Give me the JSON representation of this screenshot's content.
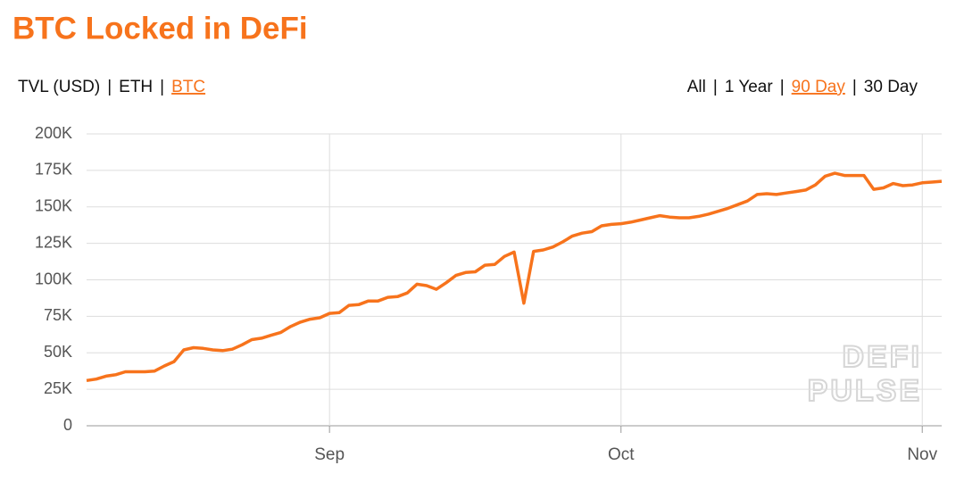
{
  "chart_data": {
    "type": "line",
    "title": "BTC Locked in DeFi",
    "metric_tabs": [
      "TVL (USD)",
      "ETH",
      "BTC"
    ],
    "active_metric": 2,
    "range_tabs": [
      "All",
      "1 Year",
      "90 Day",
      "30 Day"
    ],
    "active_range": 2,
    "separator": "|",
    "watermark": [
      "DEFI",
      "PULSE"
    ],
    "categories": [
      null,
      null,
      null,
      null,
      null,
      null,
      null,
      null,
      null,
      null,
      null,
      null,
      null,
      null,
      null,
      null,
      null,
      null,
      null,
      null,
      null,
      null,
      null,
      null,
      null,
      "Sep",
      null,
      null,
      null,
      null,
      null,
      null,
      null,
      null,
      null,
      null,
      null,
      null,
      null,
      null,
      null,
      null,
      null,
      null,
      null,
      null,
      null,
      null,
      null,
      null,
      null,
      null,
      null,
      null,
      null,
      "Oct",
      null,
      null,
      null,
      null,
      null,
      null,
      null,
      null,
      null,
      null,
      null,
      null,
      null,
      null,
      null,
      null,
      null,
      null,
      null,
      null,
      null,
      null,
      null,
      null,
      null,
      null,
      null,
      null,
      null,
      null,
      "Nov",
      null,
      null
    ],
    "series": [
      {
        "color": "#f7731c",
        "values": [
          31000,
          32000,
          34000,
          35000,
          37000,
          37000,
          37000,
          37500,
          41000,
          44000,
          52000,
          53500,
          53000,
          52000,
          51500,
          52500,
          55500,
          59000,
          60000,
          62000,
          64000,
          68000,
          71000,
          73000,
          74000,
          77000,
          77500,
          82500,
          83000,
          85500,
          85500,
          88000,
          88500,
          91000,
          97000,
          96000,
          93500,
          98000,
          103000,
          105000,
          105500,
          110000,
          110500,
          116000,
          119000,
          84000,
          119500,
          120500,
          122500,
          126000,
          130000,
          132000,
          133000,
          137000,
          138000,
          138500,
          139500,
          141000,
          142500,
          144000,
          143000,
          142500,
          142500,
          143500,
          145000,
          147000,
          149000,
          151500,
          154000,
          158500,
          159000,
          158500,
          159500,
          160500,
          161500,
          165000,
          171000,
          173000,
          171500,
          171500,
          171500,
          162000,
          163000,
          166000,
          164500,
          165000,
          166500,
          167000,
          167500
        ]
      }
    ],
    "ylim": [
      0,
      200000
    ],
    "yticks": [
      0,
      {
        "value": 25000,
        "label": "25K"
      },
      {
        "value": 50000,
        "label": "50K"
      },
      {
        "value": 75000,
        "label": "75K"
      },
      {
        "value": 100000,
        "label": "100K"
      },
      {
        "value": 125000,
        "label": "125K"
      },
      {
        "value": 150000,
        "label": "150K"
      },
      {
        "value": 175000,
        "label": "175K"
      },
      {
        "value": 200000,
        "label": "200K"
      }
    ],
    "grid": true
  }
}
